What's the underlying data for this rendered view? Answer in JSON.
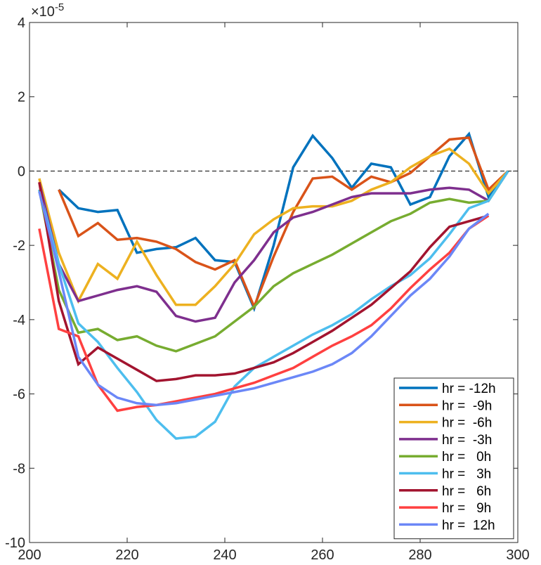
{
  "chart_data": {
    "type": "line",
    "title": "",
    "xlabel": "",
    "ylabel": "",
    "xlim": [
      200,
      300
    ],
    "ylim": [
      -10,
      4
    ],
    "x_ticks": [
      200,
      220,
      240,
      260,
      280,
      300
    ],
    "y_ticks": [
      -10,
      -8,
      -6,
      -4,
      -2,
      0,
      2,
      4
    ],
    "y_exponent": "×10-5",
    "grid": false,
    "legend_position": "bottom-right",
    "reference_line": 0,
    "series": [
      {
        "name": "hr = -12h",
        "color": "#0072BD",
        "x": [
          206,
          210,
          214,
          218,
          222,
          226,
          230,
          234,
          238,
          242,
          246,
          250,
          254,
          258,
          262,
          266,
          270,
          274,
          278,
          282,
          286,
          290,
          294,
          298
        ],
        "y": [
          -0.5,
          -1.0,
          -1.1,
          -1.05,
          -2.2,
          -2.1,
          -2.05,
          -1.8,
          -2.4,
          -2.45,
          -3.7,
          -2.0,
          0.1,
          0.95,
          0.35,
          -0.45,
          0.2,
          0.1,
          -0.9,
          -0.7,
          0.4,
          1.0,
          -0.7,
          0.0
        ]
      },
      {
        "name": "hr =  -9h",
        "color": "#D95319",
        "x": [
          206,
          210,
          214,
          218,
          222,
          226,
          230,
          234,
          238,
          242,
          246,
          250,
          254,
          258,
          262,
          266,
          270,
          274,
          278,
          282,
          286,
          290,
          294,
          298
        ],
        "y": [
          -0.5,
          -1.75,
          -1.4,
          -1.85,
          -1.8,
          -1.9,
          -2.1,
          -2.45,
          -2.65,
          -2.4,
          -3.65,
          -2.3,
          -1.1,
          -0.2,
          -0.15,
          -0.5,
          -0.15,
          -0.3,
          -0.05,
          0.4,
          0.85,
          0.9,
          -0.5,
          0.0
        ]
      },
      {
        "name": "hr =  -6h",
        "color": "#EDB120",
        "x": [
          202,
          206,
          210,
          214,
          218,
          222,
          226,
          230,
          234,
          238,
          242,
          246,
          250,
          254,
          258,
          262,
          266,
          270,
          274,
          278,
          282,
          286,
          290,
          294,
          298
        ],
        "y": [
          -0.2,
          -2.2,
          -3.5,
          -2.5,
          -2.9,
          -1.9,
          -2.8,
          -3.6,
          -3.6,
          -3.1,
          -2.5,
          -1.7,
          -1.3,
          -1.0,
          -0.95,
          -0.95,
          -0.8,
          -0.5,
          -0.3,
          0.1,
          0.4,
          0.6,
          0.2,
          -0.6,
          0.0
        ]
      },
      {
        "name": "hr =  -3h",
        "color": "#7E2F8E",
        "x": [
          202,
          206,
          210,
          214,
          218,
          222,
          226,
          230,
          234,
          238,
          242,
          246,
          250,
          254,
          258,
          262,
          266,
          270,
          274,
          278,
          282,
          286,
          290,
          294,
          298
        ],
        "y": [
          -0.3,
          -2.5,
          -3.5,
          -3.35,
          -3.2,
          -3.1,
          -3.25,
          -3.9,
          -4.05,
          -3.95,
          -3.0,
          -2.4,
          -1.65,
          -1.25,
          -1.1,
          -0.9,
          -0.7,
          -0.6,
          -0.6,
          -0.6,
          -0.5,
          -0.45,
          -0.5,
          -0.8,
          0.0
        ]
      },
      {
        "name": "hr =   0h",
        "color": "#77AC30",
        "x": [
          202,
          206,
          210,
          214,
          218,
          222,
          226,
          230,
          234,
          238,
          242,
          246,
          250,
          254,
          258,
          262,
          266,
          270,
          274,
          278,
          282,
          286,
          290,
          294,
          298
        ],
        "y": [
          -0.5,
          -3.2,
          -4.35,
          -4.25,
          -4.55,
          -4.45,
          -4.7,
          -4.85,
          -4.65,
          -4.45,
          -4.05,
          -3.65,
          -3.1,
          -2.75,
          -2.5,
          -2.25,
          -1.95,
          -1.65,
          -1.35,
          -1.15,
          -0.85,
          -0.75,
          -0.85,
          -0.8,
          0.0
        ]
      },
      {
        "name": "hr =   3h",
        "color": "#4DBEEE",
        "x": [
          202,
          206,
          210,
          214,
          218,
          222,
          226,
          230,
          234,
          238,
          242,
          246,
          250,
          254,
          258,
          262,
          266,
          270,
          274,
          278,
          282,
          286,
          290,
          294,
          298
        ],
        "y": [
          -0.5,
          -2.5,
          -4.1,
          -4.6,
          -5.3,
          -5.95,
          -6.7,
          -7.2,
          -7.15,
          -6.75,
          -5.8,
          -5.3,
          -5.0,
          -4.7,
          -4.4,
          -4.15,
          -3.85,
          -3.45,
          -3.1,
          -2.8,
          -2.35,
          -1.7,
          -1.0,
          -0.8,
          0.0
        ]
      },
      {
        "name": "hr =   6h",
        "color": "#A2142F",
        "x": [
          202,
          206,
          210,
          214,
          218,
          222,
          226,
          230,
          234,
          238,
          242,
          246,
          250,
          254,
          258,
          262,
          266,
          270,
          274,
          278,
          282,
          286,
          290,
          294
        ],
        "y": [
          -0.3,
          -3.5,
          -5.2,
          -4.75,
          -5.05,
          -5.35,
          -5.65,
          -5.6,
          -5.5,
          -5.5,
          -5.45,
          -5.3,
          -5.15,
          -4.9,
          -4.6,
          -4.3,
          -3.95,
          -3.6,
          -3.15,
          -2.7,
          -2.05,
          -1.5,
          -1.35,
          -1.2
        ]
      },
      {
        "name": "hr =   9h",
        "color": "#FF4040",
        "x": [
          202,
          206,
          210,
          214,
          218,
          222,
          226,
          230,
          234,
          238,
          242,
          246,
          250,
          254,
          258,
          262,
          266,
          270,
          274,
          278,
          282,
          286,
          290,
          294
        ],
        "y": [
          -1.55,
          -4.25,
          -4.45,
          -5.75,
          -6.45,
          -6.35,
          -6.3,
          -6.2,
          -6.1,
          -6.0,
          -5.85,
          -5.7,
          -5.5,
          -5.3,
          -5.0,
          -4.7,
          -4.45,
          -4.15,
          -3.7,
          -3.15,
          -2.65,
          -2.2,
          -1.55,
          -1.2
        ]
      },
      {
        "name": "hr =  12h",
        "color": "#6B87F7",
        "x": [
          202,
          206,
          210,
          214,
          218,
          222,
          226,
          230,
          234,
          238,
          242,
          246,
          250,
          254,
          258,
          262,
          266,
          270,
          274,
          278,
          282,
          286,
          290,
          294
        ],
        "y": [
          -0.55,
          -2.7,
          -5.0,
          -5.75,
          -6.1,
          -6.25,
          -6.3,
          -6.25,
          -6.15,
          -6.05,
          -5.95,
          -5.85,
          -5.7,
          -5.55,
          -5.4,
          -5.2,
          -4.9,
          -4.45,
          -3.9,
          -3.35,
          -2.9,
          -2.3,
          -1.55,
          -1.15
        ]
      }
    ]
  }
}
